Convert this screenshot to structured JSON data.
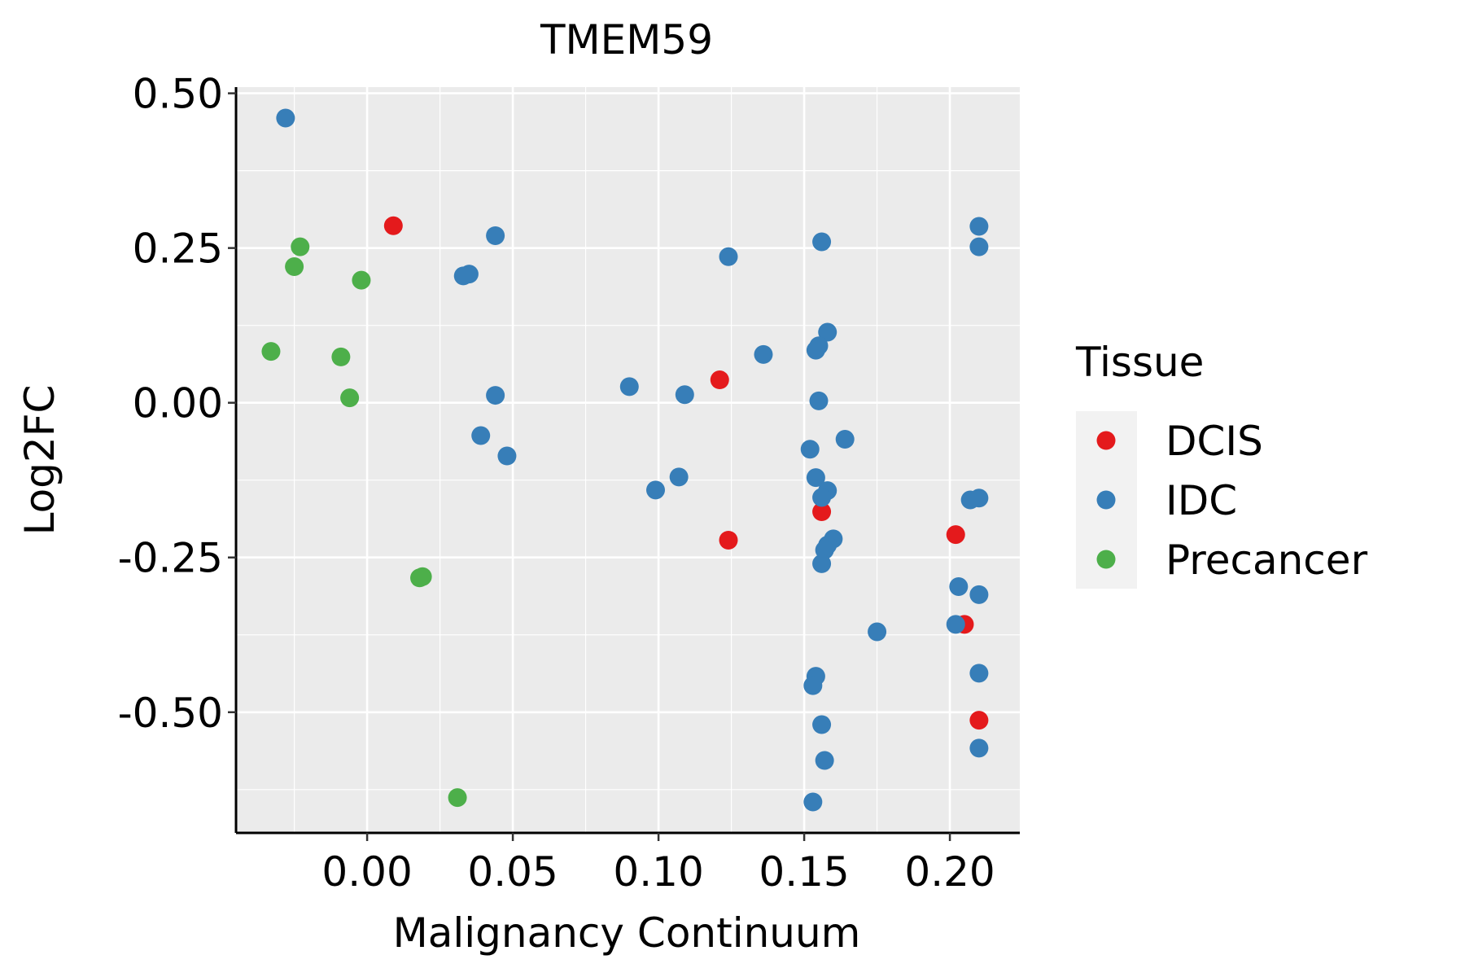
{
  "chart_data": {
    "type": "scatter",
    "title": "TMEM59",
    "xlabel": "Malignancy Continuum",
    "ylabel": "Log2FC",
    "xlim": [
      -0.045,
      0.224
    ],
    "ylim": [
      -0.695,
      0.51
    ],
    "x_ticks": [
      0.0,
      0.05,
      0.1,
      0.15,
      0.2
    ],
    "x_tick_labels": [
      "0.00",
      "0.05",
      "0.10",
      "0.15",
      "0.20"
    ],
    "y_ticks": [
      0.5,
      0.25,
      0.0,
      -0.25,
      -0.5
    ],
    "y_tick_labels": [
      "0.50",
      "0.25",
      "0.00",
      "-0.25",
      "-0.50"
    ],
    "grid": true,
    "legend": {
      "title": "Tissue",
      "position": "right",
      "entries": [
        {
          "label": "DCIS",
          "color": "#e41a1c"
        },
        {
          "label": "IDC",
          "color": "#377eb8"
        },
        {
          "label": "Precancer",
          "color": "#4daf4a"
        }
      ]
    },
    "series": [
      {
        "name": "DCIS",
        "color": "#e41a1c",
        "points": [
          [
            0.009,
            0.286
          ],
          [
            0.121,
            0.037
          ],
          [
            0.124,
            -0.222
          ],
          [
            0.156,
            -0.176
          ],
          [
            0.202,
            -0.213
          ],
          [
            0.205,
            -0.358
          ],
          [
            0.21,
            -0.513
          ]
        ]
      },
      {
        "name": "IDC",
        "color": "#377eb8",
        "points": [
          [
            -0.028,
            0.46
          ],
          [
            0.044,
            0.27
          ],
          [
            0.035,
            0.208
          ],
          [
            0.033,
            0.205
          ],
          [
            0.044,
            0.012
          ],
          [
            0.039,
            -0.053
          ],
          [
            0.048,
            -0.086
          ],
          [
            0.09,
            0.026
          ],
          [
            0.099,
            -0.141
          ],
          [
            0.107,
            -0.12
          ],
          [
            0.109,
            0.013
          ],
          [
            0.124,
            0.236
          ],
          [
            0.136,
            0.078
          ],
          [
            0.156,
            0.26
          ],
          [
            0.158,
            0.114
          ],
          [
            0.155,
            0.092
          ],
          [
            0.154,
            0.085
          ],
          [
            0.155,
            0.003
          ],
          [
            0.152,
            -0.075
          ],
          [
            0.164,
            -0.059
          ],
          [
            0.154,
            -0.121
          ],
          [
            0.158,
            -0.142
          ],
          [
            0.156,
            -0.153
          ],
          [
            0.16,
            -0.22
          ],
          [
            0.158,
            -0.23
          ],
          [
            0.157,
            -0.238
          ],
          [
            0.156,
            -0.26
          ],
          [
            0.175,
            -0.37
          ],
          [
            0.154,
            -0.442
          ],
          [
            0.153,
            -0.457
          ],
          [
            0.156,
            -0.52
          ],
          [
            0.157,
            -0.578
          ],
          [
            0.153,
            -0.645
          ],
          [
            0.21,
            0.285
          ],
          [
            0.21,
            0.252
          ],
          [
            0.207,
            -0.157
          ],
          [
            0.21,
            -0.154
          ],
          [
            0.203,
            -0.297
          ],
          [
            0.21,
            -0.31
          ],
          [
            0.202,
            -0.358
          ],
          [
            0.21,
            -0.437
          ],
          [
            0.21,
            -0.558
          ]
        ]
      },
      {
        "name": "Precancer",
        "color": "#4daf4a",
        "points": [
          [
            -0.023,
            0.252
          ],
          [
            -0.025,
            0.22
          ],
          [
            -0.002,
            0.198
          ],
          [
            -0.033,
            0.083
          ],
          [
            -0.009,
            0.074
          ],
          [
            -0.006,
            0.008
          ],
          [
            0.018,
            -0.283
          ],
          [
            0.019,
            -0.281
          ],
          [
            0.031,
            -0.638
          ]
        ]
      }
    ]
  }
}
